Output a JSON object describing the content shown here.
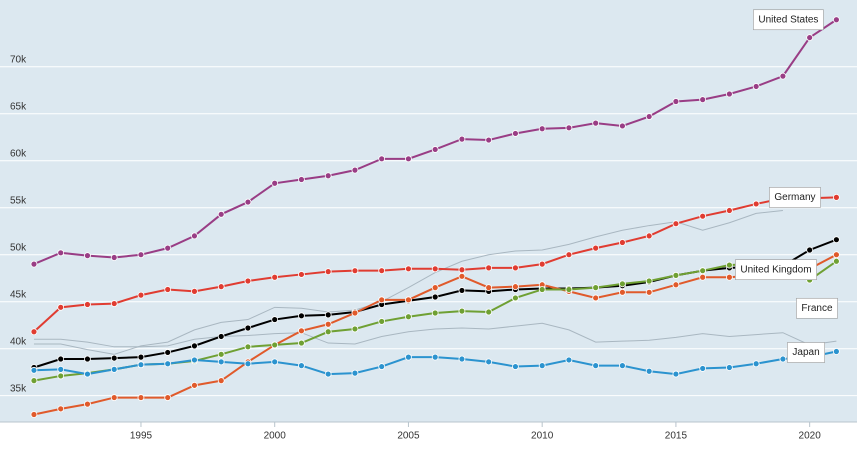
{
  "chart_data": {
    "type": "line",
    "x": [
      1991,
      1992,
      1993,
      1994,
      1995,
      1996,
      1997,
      1998,
      1999,
      2000,
      2001,
      2002,
      2003,
      2004,
      2005,
      2006,
      2007,
      2008,
      2009,
      2010,
      2011,
      2012,
      2013,
      2014,
      2015,
      2016,
      2017,
      2018,
      2019,
      2020,
      2021
    ],
    "xlim": [
      1989.73,
      2021.77
    ],
    "xticks": [
      1995,
      2000,
      2005,
      2010,
      2015,
      2020
    ],
    "ylim": [
      32200,
      77100
    ],
    "yticks": [
      {
        "value": 35000,
        "label": "35k"
      },
      {
        "value": 40000,
        "label": "40k"
      },
      {
        "value": 45000,
        "label": "45k"
      },
      {
        "value": 50000,
        "label": "50k"
      },
      {
        "value": 55000,
        "label": "55k"
      },
      {
        "value": 60000,
        "label": "60k"
      },
      {
        "value": 65000,
        "label": "65k"
      },
      {
        "value": 70000,
        "label": "70k"
      }
    ],
    "grid": true,
    "series": [
      {
        "color": "#a9b7c1",
        "markers": false,
        "values": [
          40500,
          40500,
          39900,
          39400,
          40300,
          40700,
          42000,
          42800,
          43100,
          44400,
          44300,
          43900,
          44100,
          45000,
          46500,
          48100,
          49300,
          50000,
          50400,
          50500,
          51100,
          51900,
          52600,
          53100,
          53500,
          52600,
          53400,
          54400,
          54700,
          null,
          null
        ]
      },
      {
        "color": "#a9b7c1",
        "markers": false,
        "values": [
          41000,
          41000,
          40700,
          40200,
          40200,
          40300,
          41000,
          41300,
          41400,
          41600,
          41700,
          40600,
          40500,
          41300,
          41800,
          42100,
          42200,
          42100,
          42400,
          42700,
          42000,
          40700,
          40800,
          40900,
          41200,
          41600,
          41300,
          41500,
          41700,
          40400,
          40800
        ]
      },
      {
        "color": "#000000",
        "markers": true,
        "values": [
          38000,
          38900,
          38900,
          39000,
          39100,
          39600,
          40300,
          41300,
          42200,
          43100,
          43500,
          43600,
          43900,
          44700,
          45100,
          45500,
          46200,
          46100,
          46300,
          46400,
          46400,
          46500,
          46700,
          47100,
          47800,
          48300,
          48600,
          48700,
          48800,
          50500,
          51600
        ]
      },
      {
        "name": "United Kingdom",
        "color": "#e05a2b",
        "markers": true,
        "values": [
          33000,
          33600,
          34100,
          34800,
          34800,
          34800,
          36100,
          36600,
          38600,
          40400,
          41900,
          42600,
          43800,
          45200,
          45200,
          46500,
          47700,
          46500,
          46600,
          46800,
          46100,
          45400,
          46000,
          46000,
          46800,
          47600,
          47600,
          47800,
          48500,
          48500,
          50000
        ]
      },
      {
        "name": "France",
        "color": "#6fa033",
        "markers": true,
        "values": [
          36600,
          37100,
          37400,
          37800,
          38300,
          38400,
          38700,
          39400,
          40200,
          40400,
          40600,
          41800,
          42100,
          42900,
          43400,
          43800,
          44000,
          43900,
          45400,
          46300,
          46300,
          46500,
          46900,
          47200,
          47800,
          48300,
          48900,
          49000,
          48900,
          47300,
          49300
        ]
      },
      {
        "name": "Japan",
        "color": "#2b93cf",
        "markers": true,
        "values": [
          37700,
          37800,
          37300,
          37800,
          38300,
          38400,
          38800,
          38600,
          38400,
          38600,
          38200,
          37300,
          37400,
          38100,
          39100,
          39100,
          38900,
          38600,
          38100,
          38200,
          38800,
          38200,
          38200,
          37600,
          37300,
          37900,
          38000,
          38400,
          38900,
          39100,
          39700
        ]
      },
      {
        "name": "Germany",
        "color": "#e03c31",
        "markers": true,
        "values": [
          41800,
          44400,
          44700,
          44800,
          45700,
          46300,
          46100,
          46600,
          47200,
          47600,
          47900,
          48200,
          48300,
          48300,
          48500,
          48500,
          48400,
          48600,
          48600,
          49000,
          50000,
          50700,
          51300,
          52000,
          53300,
          54100,
          54700,
          55400,
          56000,
          56000,
          56100
        ]
      },
      {
        "name": "United States",
        "color": "#993d85",
        "markers": true,
        "values": [
          49000,
          50200,
          49900,
          49700,
          50000,
          50700,
          52000,
          54300,
          55600,
          57600,
          58000,
          58400,
          59000,
          60200,
          60200,
          61200,
          62300,
          62200,
          62900,
          63400,
          63500,
          64000,
          63700,
          64700,
          66300,
          66500,
          67100,
          67900,
          69000,
          73100,
          75000
        ]
      }
    ]
  }
}
